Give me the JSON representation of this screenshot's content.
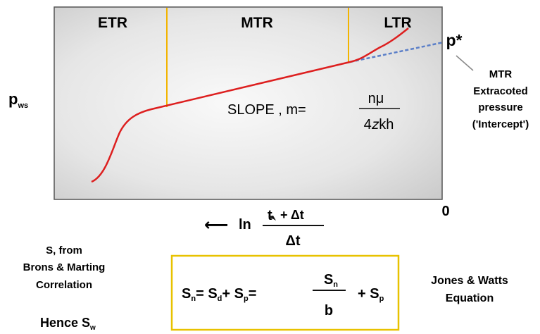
{
  "plot": {
    "regions": [
      "ETR",
      "MTR",
      "LTR"
    ],
    "y_axis_label": "p",
    "y_axis_label_sub": "ws",
    "x_axis_origin": "0",
    "slope_label": "SLOPE , m=",
    "slope_numerator": "nμ",
    "slope_denominator": "4𝑧kh",
    "p_star": "p*"
  },
  "annotation": {
    "lines": [
      "MTR",
      "Extracoted",
      "pressure",
      "('Intercept')"
    ]
  },
  "x_axis": {
    "arrow": "⟵",
    "ln": "ln",
    "numerator_t": "t",
    "numerator_rest": "+ Δt",
    "denominator": "Δt"
  },
  "left_note": {
    "lines": [
      "S, from",
      "Brons & Marting",
      "Correlation"
    ],
    "hence": "Hence S",
    "hence_sub": "w"
  },
  "equation": {
    "sn": "S",
    "sn_sub": "n",
    "eq1": "= S",
    "sd_sub": "d",
    "plus1": "+ S",
    "sp_sub": "p",
    "eq2": "=",
    "frac_num": "S",
    "frac_num_sub": "n",
    "frac_den": "b",
    "plus2": "+ S",
    "sp2_sub": "p"
  },
  "right_note": {
    "lines": [
      "Jones & Watts",
      "Equation"
    ]
  },
  "colors": {
    "curve": "#dd1f1f",
    "region_lines": "#f2b400",
    "extrapolation": "#5b7fc8",
    "box_border": "#e8c200"
  }
}
